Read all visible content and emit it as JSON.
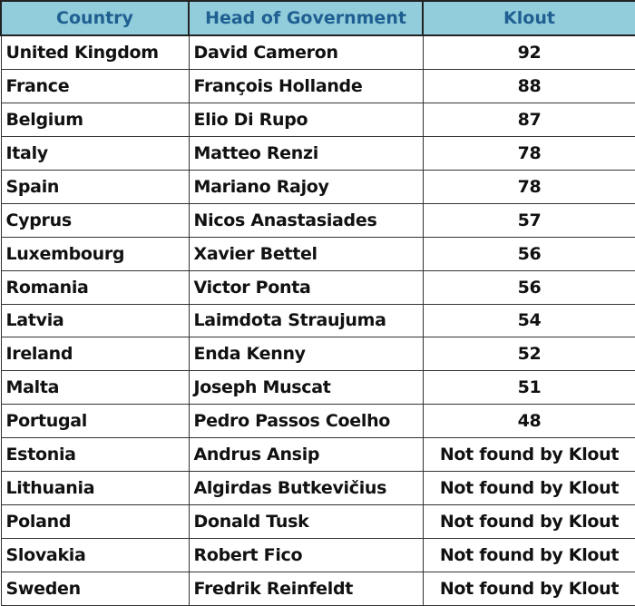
{
  "headers": [
    "Country",
    "Head of Government",
    "Klout"
  ],
  "colors": {
    "header_bg": "#92cddc",
    "header_text": "#1f5f91"
  },
  "rows": [
    [
      "United Kingdom",
      "David Cameron",
      "92"
    ],
    [
      "France",
      "François Hollande",
      "88"
    ],
    [
      "Belgium",
      "Elio Di Rupo",
      "87"
    ],
    [
      "Italy",
      "Matteo Renzi",
      "78"
    ],
    [
      "Spain",
      "Mariano Rajoy",
      "78"
    ],
    [
      "Cyprus",
      "Nicos Anastasiades",
      "57"
    ],
    [
      "Luxembourg",
      "Xavier Bettel",
      "56"
    ],
    [
      "Romania",
      "Victor Ponta",
      "56"
    ],
    [
      "Latvia",
      "Laimdota Straujuma",
      "54"
    ],
    [
      "Ireland",
      "Enda Kenny",
      "52"
    ],
    [
      "Malta",
      "Joseph Muscat",
      "51"
    ],
    [
      "Portugal",
      "Pedro Passos Coelho",
      "48"
    ],
    [
      "Estonia",
      "Andrus Ansip",
      "Not found by Klout"
    ],
    [
      "Lithuania",
      "Algirdas Butkevičius",
      "Not found by Klout"
    ],
    [
      "Poland",
      "Donald Tusk",
      "Not found by Klout"
    ],
    [
      "Slovakia",
      "Robert Fico",
      "Not found by Klout"
    ],
    [
      "Sweden",
      "Fredrik Reinfeldt",
      "Not found by Klout"
    ]
  ]
}
